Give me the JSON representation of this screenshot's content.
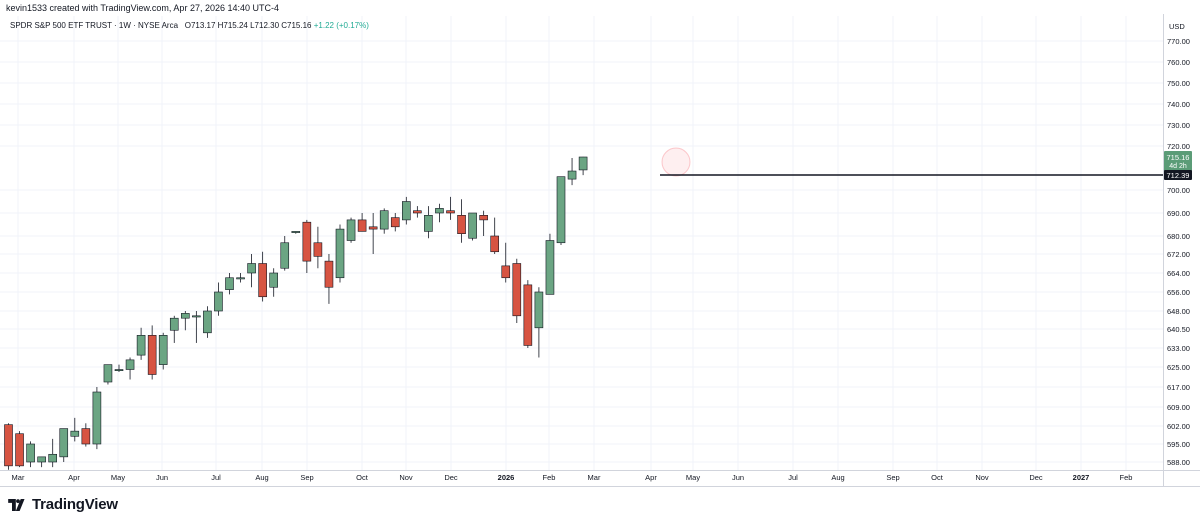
{
  "header": {
    "attribution": "kevin1533 created with TradingView.com, Apr 27, 2026 14:40 UTC-4"
  },
  "legend": {
    "symbol": "SPDR S&P 500 ETF TRUST · 1W · NYSE Arca",
    "ohlc": "O713.17 H715.24 L712.30 C715.16",
    "change": "+1.22 (+0.17%)"
  },
  "price_axis": {
    "currency": "USD",
    "ticks": [
      "770.00",
      "760.00",
      "750.00",
      "740.00",
      "730.00",
      "720.00",
      "700.00",
      "690.00",
      "680.00",
      "672.00",
      "664.00",
      "656.00",
      "648.00",
      "640.50",
      "633.00",
      "625.00",
      "617.00",
      "609.00",
      "602.00",
      "595.00",
      "588.00"
    ],
    "last_price_label": "715.16",
    "countdown_label": "4d 2h",
    "line_label": "712.39"
  },
  "time_axis": {
    "labels": [
      "Mar",
      "Apr",
      "May",
      "Jun",
      "Jul",
      "Aug",
      "Sep",
      "Oct",
      "Nov",
      "Dec",
      "2026",
      "Feb",
      "Mar",
      "Apr",
      "May",
      "Jun",
      "Jul",
      "Aug",
      "Sep",
      "Oct",
      "Nov",
      "Dec",
      "2027",
      "Feb"
    ]
  },
  "footer": {
    "logo_text": "TradingView"
  },
  "colors": {
    "up": "#6ba583",
    "down": "#d75442",
    "grid": "#f0f3fa",
    "axis_border": "#d1d4dc",
    "hline": "#131722"
  },
  "chart_data": {
    "type": "candlestick",
    "timeframe": "1W",
    "ylim": [
      586,
      776
    ],
    "horizontal_line": 712.39,
    "last_price": 715.16,
    "candles": [
      {
        "o": 602.5,
        "h": 603,
        "l": 585,
        "c": 586.5
      },
      {
        "o": 599,
        "h": 600,
        "l": 586,
        "c": 586.5
      },
      {
        "o": 588,
        "h": 596,
        "l": 586,
        "c": 595
      },
      {
        "o": 588,
        "h": 590,
        "l": 586,
        "c": 590
      },
      {
        "o": 588,
        "h": 597,
        "l": 586,
        "c": 591
      },
      {
        "o": 590,
        "h": 601,
        "l": 588,
        "c": 601
      },
      {
        "o": 598,
        "h": 605,
        "l": 596,
        "c": 600
      },
      {
        "o": 601,
        "h": 603,
        "l": 594,
        "c": 595
      },
      {
        "o": 595,
        "h": 617,
        "l": 593,
        "c": 615
      },
      {
        "o": 619,
        "h": 626,
        "l": 618,
        "c": 626
      },
      {
        "o": 624,
        "h": 626,
        "l": 623,
        "c": 624
      },
      {
        "o": 624,
        "h": 629,
        "l": 620,
        "c": 628
      },
      {
        "o": 630,
        "h": 641,
        "l": 628,
        "c": 638
      },
      {
        "o": 638,
        "h": 642,
        "l": 620,
        "c": 622
      },
      {
        "o": 626,
        "h": 639,
        "l": 624,
        "c": 638
      },
      {
        "o": 640,
        "h": 646,
        "l": 635,
        "c": 645
      },
      {
        "o": 645,
        "h": 648,
        "l": 640,
        "c": 647
      },
      {
        "o": 646,
        "h": 648,
        "l": 635,
        "c": 646
      },
      {
        "o": 639,
        "h": 650,
        "l": 637,
        "c": 648
      },
      {
        "o": 648,
        "h": 660,
        "l": 646,
        "c": 656
      },
      {
        "o": 657,
        "h": 664,
        "l": 655,
        "c": 662
      },
      {
        "o": 662,
        "h": 664,
        "l": 660,
        "c": 662
      },
      {
        "o": 664,
        "h": 672,
        "l": 658,
        "c": 668
      },
      {
        "o": 668,
        "h": 673,
        "l": 652,
        "c": 654
      },
      {
        "o": 658,
        "h": 666,
        "l": 654,
        "c": 664
      },
      {
        "o": 666,
        "h": 680,
        "l": 665,
        "c": 677
      },
      {
        "o": 682,
        "h": 682,
        "l": 681,
        "c": 682
      },
      {
        "o": 686,
        "h": 687,
        "l": 664,
        "c": 669
      },
      {
        "o": 677,
        "h": 684,
        "l": 666,
        "c": 671
      },
      {
        "o": 669,
        "h": 672,
        "l": 651,
        "c": 658
      },
      {
        "o": 662,
        "h": 685,
        "l": 660,
        "c": 683
      },
      {
        "o": 678,
        "h": 688,
        "l": 677,
        "c": 687
      },
      {
        "o": 687,
        "h": 690,
        "l": 682,
        "c": 682
      },
      {
        "o": 684,
        "h": 690,
        "l": 672,
        "c": 683
      },
      {
        "o": 683,
        "h": 692,
        "l": 681,
        "c": 691
      },
      {
        "o": 688,
        "h": 690,
        "l": 682,
        "c": 684
      },
      {
        "o": 687,
        "h": 697,
        "l": 685,
        "c": 695
      },
      {
        "o": 691,
        "h": 693,
        "l": 688,
        "c": 690
      },
      {
        "o": 682,
        "h": 693,
        "l": 679,
        "c": 689
      },
      {
        "o": 690,
        "h": 694,
        "l": 686,
        "c": 692
      },
      {
        "o": 691,
        "h": 697,
        "l": 687,
        "c": 690
      },
      {
        "o": 689,
        "h": 696,
        "l": 677,
        "c": 681
      },
      {
        "o": 679,
        "h": 690,
        "l": 678,
        "c": 690
      },
      {
        "o": 689,
        "h": 691,
        "l": 680,
        "c": 687
      },
      {
        "o": 680,
        "h": 688,
        "l": 672,
        "c": 673
      },
      {
        "o": 667,
        "h": 677,
        "l": 660,
        "c": 662
      },
      {
        "o": 668,
        "h": 670,
        "l": 643,
        "c": 646
      },
      {
        "o": 659,
        "h": 661,
        "l": 633,
        "c": 634
      },
      {
        "o": 641,
        "h": 658,
        "l": 629,
        "c": 656
      },
      {
        "o": 655,
        "h": 681,
        "l": 655,
        "c": 678
      },
      {
        "o": 677,
        "h": 711,
        "l": 676,
        "c": 711
      },
      {
        "o": 709,
        "h": 715,
        "l": 704,
        "c": 713
      },
      {
        "o": 713.17,
        "h": 715.24,
        "l": 712.3,
        "c": 715.16
      }
    ]
  }
}
